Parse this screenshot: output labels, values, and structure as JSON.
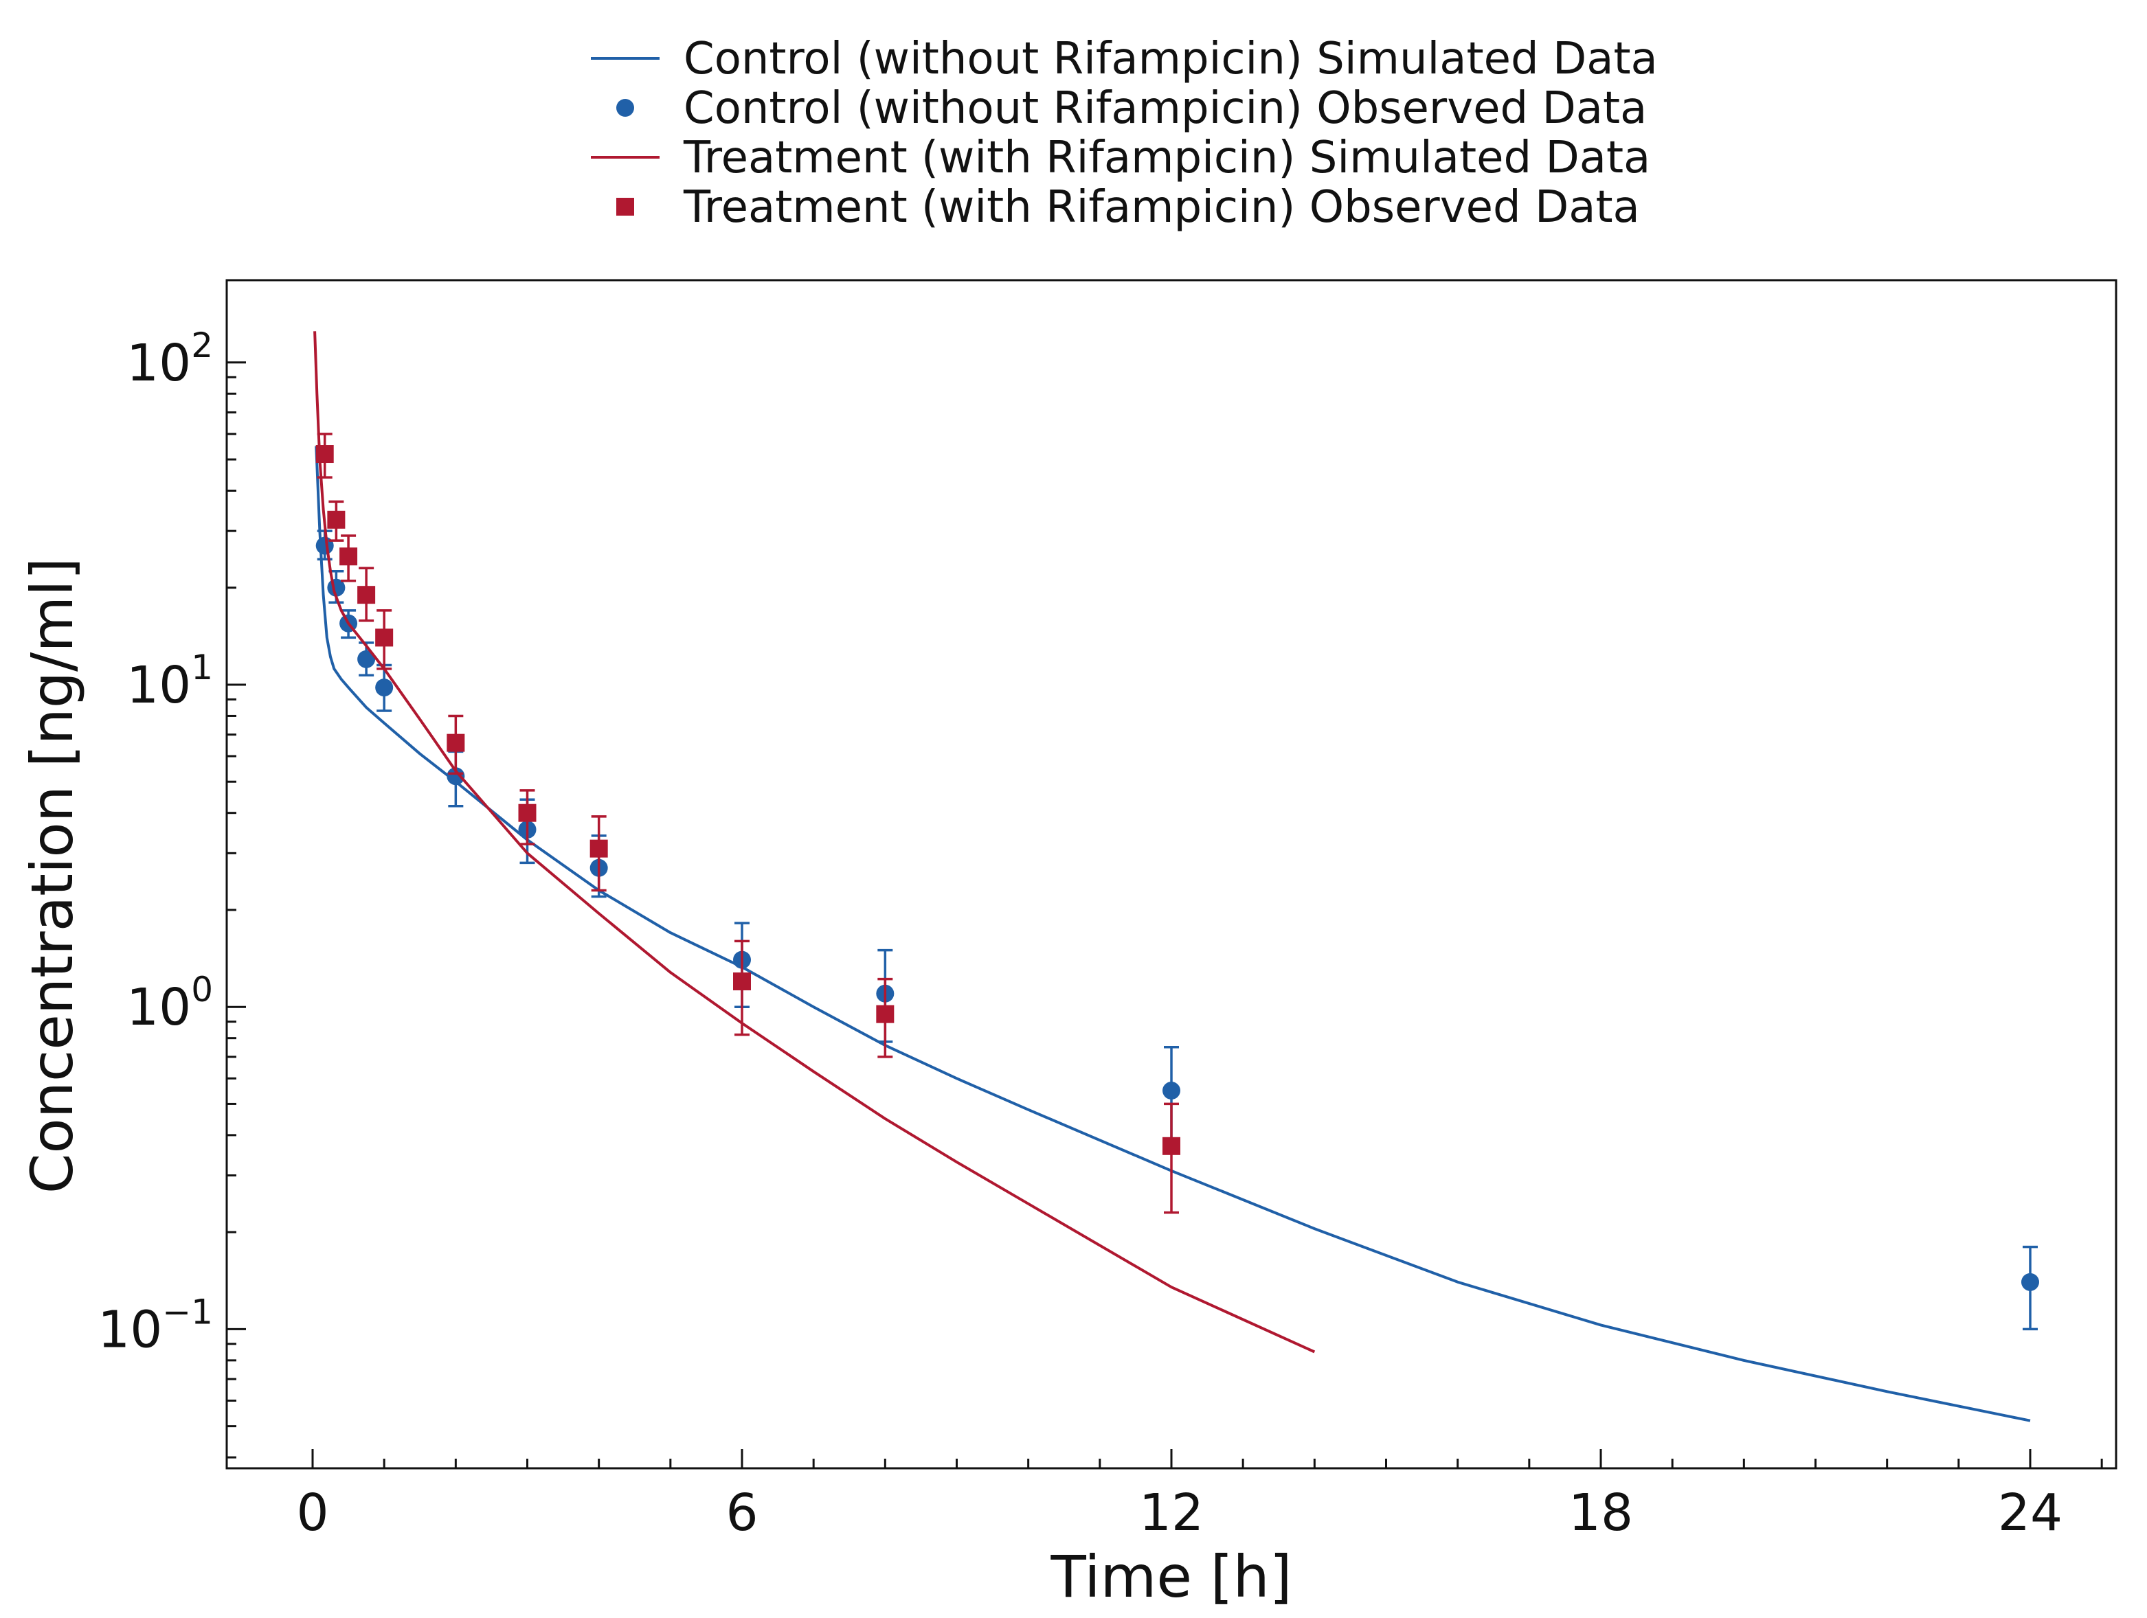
{
  "chart_data": {
    "type": "line",
    "title": "",
    "xlabel": "Time [h]",
    "ylabel": "Concentration [ng/ml]",
    "x_scale": "linear",
    "y_scale": "log",
    "xlim": [
      -1.2,
      25.2
    ],
    "ylim": [
      0.037,
      180
    ],
    "x_ticks": [
      0,
      6,
      12,
      18,
      24
    ],
    "x_tick_labels": [
      "0",
      "6",
      "12",
      "18",
      "24"
    ],
    "y_ticks": [
      {
        "value": 0.1,
        "base": "10",
        "exp": "−1"
      },
      {
        "value": 1,
        "base": "10",
        "exp": "0"
      },
      {
        "value": 10,
        "base": "10",
        "exp": "1"
      },
      {
        "value": 100,
        "base": "10",
        "exp": "2"
      }
    ],
    "grid": false,
    "legend_position": "top-center",
    "series": [
      {
        "name": "Control (without Rifampicin) Simulated Data",
        "kind": "line",
        "color": "#2060a8",
        "x": [
          0.05,
          0.1,
          0.15,
          0.2,
          0.25,
          0.3,
          0.4,
          0.5,
          0.75,
          1,
          1.5,
          2,
          3,
          4,
          5,
          6,
          7,
          8,
          9,
          10,
          12,
          14,
          16,
          18,
          20,
          22,
          24
        ],
        "y": [
          55,
          30,
          19,
          14,
          12.2,
          11.2,
          10.4,
          9.8,
          8.5,
          7.6,
          6.1,
          5.0,
          3.3,
          2.3,
          1.7,
          1.33,
          1.0,
          0.76,
          0.6,
          0.48,
          0.31,
          0.205,
          0.14,
          0.103,
          0.08,
          0.064,
          0.052
        ]
      },
      {
        "name": "Control (without Rifampicin) Observed Data",
        "kind": "points",
        "marker": "circle",
        "color": "#2060a8",
        "x": [
          0.17,
          0.33,
          0.5,
          0.75,
          1,
          2,
          3,
          4,
          6,
          8,
          12,
          24
        ],
        "y": [
          27,
          20,
          15.5,
          12,
          9.8,
          5.2,
          3.55,
          2.7,
          1.4,
          1.1,
          0.55,
          0.14
        ],
        "y_low": [
          24.5,
          18,
          14,
          10.7,
          8.3,
          4.2,
          2.8,
          2.2,
          1.0,
          0.78,
          0.38,
          0.1
        ],
        "y_high": [
          30,
          22.5,
          17,
          13.5,
          11.5,
          6.2,
          4.4,
          3.4,
          1.82,
          1.5,
          0.75,
          0.18
        ]
      },
      {
        "name": "Treatment (with Rifampicin) Simulated Data",
        "kind": "line",
        "color": "#b01830",
        "x": [
          0.03,
          0.06,
          0.1,
          0.15,
          0.2,
          0.25,
          0.3,
          0.4,
          0.5,
          0.75,
          1,
          1.5,
          2,
          3,
          4,
          5,
          6,
          7,
          8,
          9,
          10,
          12,
          14
        ],
        "y": [
          125,
          80,
          50,
          35,
          27,
          22.5,
          19.5,
          17,
          15.5,
          13.2,
          11.2,
          7.8,
          5.4,
          3.0,
          1.95,
          1.28,
          0.89,
          0.63,
          0.45,
          0.33,
          0.245,
          0.135,
          0.085
        ]
      },
      {
        "name": "Treatment (with Rifampicin) Observed Data",
        "kind": "points",
        "marker": "square",
        "color": "#b01830",
        "x": [
          0.17,
          0.33,
          0.5,
          0.75,
          1,
          2,
          3,
          4,
          6,
          8,
          12
        ],
        "y": [
          52,
          32.5,
          25,
          19,
          14,
          6.6,
          4.0,
          3.1,
          1.2,
          0.95,
          0.37
        ],
        "y_low": [
          44,
          28,
          21,
          15.8,
          11.2,
          5.3,
          3.2,
          2.3,
          0.82,
          0.7,
          0.23
        ],
        "y_high": [
          60,
          37,
          29,
          23,
          17,
          8.0,
          4.7,
          3.9,
          1.6,
          1.22,
          0.5
        ]
      }
    ]
  }
}
